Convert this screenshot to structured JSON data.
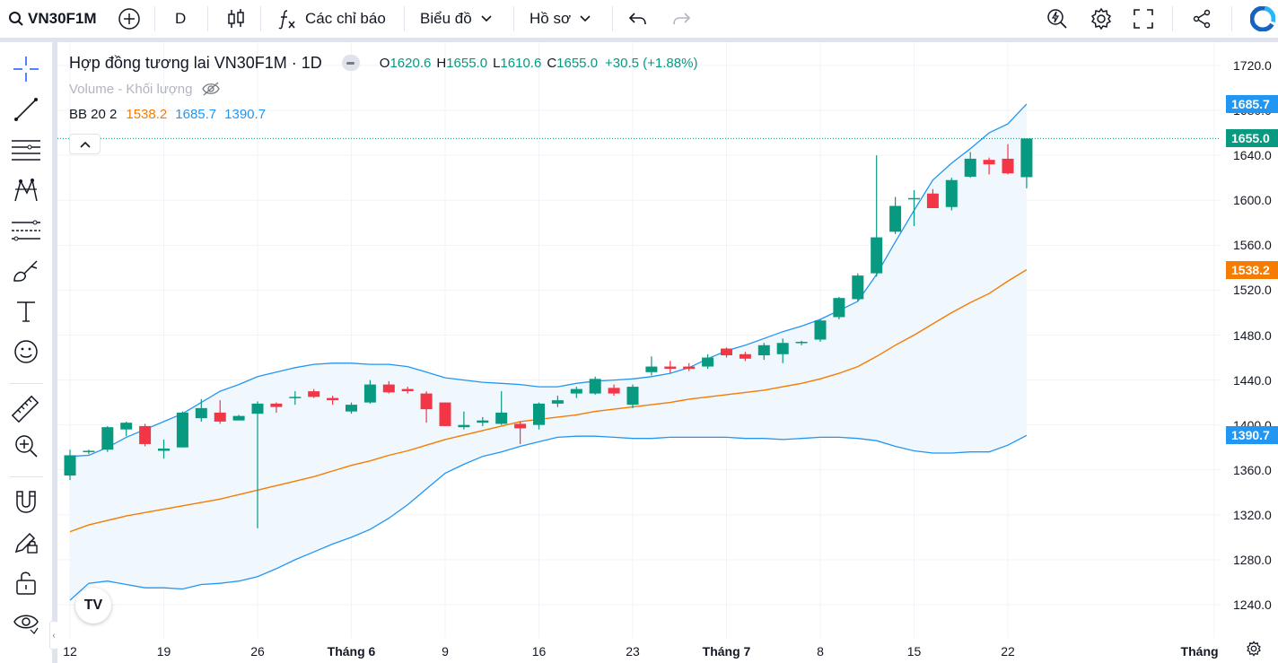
{
  "toolbar": {
    "symbol": "VN30F1M",
    "interval": "D",
    "indicators_label": "Các chỉ báo",
    "chart_label": "Biểu đồ",
    "profile_label": "Hồ sơ"
  },
  "legend": {
    "title": "Hợp đồng tương lai VN30F1M · 1D",
    "o_label": "O",
    "o_value": "1620.6",
    "h_label": "H",
    "h_value": "1655.0",
    "l_label": "L",
    "l_value": "1610.6",
    "c_label": "C",
    "c_value": "1655.0",
    "change": "+30.5 (+1.88%)",
    "volume_label": "Volume - Khối lượng",
    "bb_label": "BB 20 2",
    "bb_middle": "1538.2",
    "bb_upper": "1685.7",
    "bb_lower": "1390.7"
  },
  "logo_text": "TV",
  "colors": {
    "up": "#089981",
    "down": "#f23645",
    "bb_basis": "#f57c00",
    "bb_band": "#2196f3",
    "bb_fill": "#f0f7fd",
    "last_price": "#089981"
  },
  "price_scale": {
    "ticks": [
      "1720.0",
      "1680.0",
      "1640.0",
      "1600.0",
      "1560.0",
      "1520.0",
      "1480.0",
      "1440.0",
      "1400.0",
      "1360.0",
      "1320.0",
      "1280.0",
      "1240.0"
    ],
    "tick_values": [
      1720,
      1680,
      1640,
      1600,
      1560,
      1520,
      1480,
      1440,
      1400,
      1360,
      1320,
      1280,
      1240
    ],
    "badges": [
      {
        "label": "1685.7",
        "value": 1685.7,
        "color": "#2196f3"
      },
      {
        "label": "1655.0",
        "value": 1655.0,
        "color": "#089981"
      },
      {
        "label": "1538.2",
        "value": 1538.2,
        "color": "#f57c00"
      },
      {
        "label": "1390.7",
        "value": 1390.7,
        "color": "#2196f3"
      }
    ]
  },
  "time_scale": {
    "ticks": [
      {
        "label": "12",
        "index": 0
      },
      {
        "label": "19",
        "index": 5
      },
      {
        "label": "26",
        "index": 10
      },
      {
        "label": "Tháng 6",
        "index": 15,
        "bold": true
      },
      {
        "label": "9",
        "index": 20
      },
      {
        "label": "16",
        "index": 25
      },
      {
        "label": "23",
        "index": 30
      },
      {
        "label": "Tháng 7",
        "index": 35,
        "bold": true
      },
      {
        "label": "8",
        "index": 40
      },
      {
        "label": "15",
        "index": 45
      },
      {
        "label": "22",
        "index": 50
      },
      {
        "label": "Tháng Tám",
        "index": 61,
        "bold": true
      }
    ]
  },
  "chart_data": {
    "type": "candlestick",
    "title": "Hợp đồng tương lai VN30F1M · 1D",
    "ylim": [
      1220,
      1750
    ],
    "last_price": 1655.0,
    "candles": [
      {
        "o": 1355,
        "h": 1378,
        "l": 1351,
        "c": 1373
      },
      {
        "o": 1376,
        "h": 1378,
        "l": 1374,
        "c": 1377
      },
      {
        "o": 1378,
        "h": 1399,
        "l": 1376,
        "c": 1398
      },
      {
        "o": 1396,
        "h": 1403,
        "l": 1390,
        "c": 1402
      },
      {
        "o": 1399,
        "h": 1401,
        "l": 1381,
        "c": 1383
      },
      {
        "o": 1377,
        "h": 1387,
        "l": 1370,
        "c": 1379
      },
      {
        "o": 1380,
        "h": 1412,
        "l": 1380,
        "c": 1411
      },
      {
        "o": 1406,
        "h": 1423,
        "l": 1403,
        "c": 1415
      },
      {
        "o": 1411,
        "h": 1422,
        "l": 1401,
        "c": 1403
      },
      {
        "o": 1404,
        "h": 1409,
        "l": 1404,
        "c": 1408
      },
      {
        "o": 1410,
        "h": 1421,
        "l": 1308,
        "c": 1419
      },
      {
        "o": 1419,
        "h": 1420,
        "l": 1411,
        "c": 1416
      },
      {
        "o": 1424,
        "h": 1430,
        "l": 1418,
        "c": 1425
      },
      {
        "o": 1430,
        "h": 1432,
        "l": 1424,
        "c": 1425
      },
      {
        "o": 1424,
        "h": 1426,
        "l": 1418,
        "c": 1422
      },
      {
        "o": 1412,
        "h": 1420,
        "l": 1410,
        "c": 1418
      },
      {
        "o": 1420,
        "h": 1440,
        "l": 1419,
        "c": 1436
      },
      {
        "o": 1436,
        "h": 1439,
        "l": 1428,
        "c": 1429
      },
      {
        "o": 1432,
        "h": 1434,
        "l": 1428,
        "c": 1430
      },
      {
        "o": 1428,
        "h": 1430,
        "l": 1402,
        "c": 1414
      },
      {
        "o": 1420,
        "h": 1420,
        "l": 1399,
        "c": 1399
      },
      {
        "o": 1398,
        "h": 1412,
        "l": 1396,
        "c": 1400
      },
      {
        "o": 1402,
        "h": 1407,
        "l": 1399,
        "c": 1404
      },
      {
        "o": 1401,
        "h": 1430,
        "l": 1400,
        "c": 1411
      },
      {
        "o": 1401,
        "h": 1403,
        "l": 1383,
        "c": 1397
      },
      {
        "o": 1400,
        "h": 1420,
        "l": 1396,
        "c": 1419
      },
      {
        "o": 1419,
        "h": 1426,
        "l": 1416,
        "c": 1422
      },
      {
        "o": 1428,
        "h": 1434,
        "l": 1424,
        "c": 1432
      },
      {
        "o": 1428,
        "h": 1443,
        "l": 1427,
        "c": 1441
      },
      {
        "o": 1433,
        "h": 1436,
        "l": 1426,
        "c": 1428
      },
      {
        "o": 1418,
        "h": 1436,
        "l": 1415,
        "c": 1434
      },
      {
        "o": 1447,
        "h": 1461,
        "l": 1444,
        "c": 1452
      },
      {
        "o": 1452,
        "h": 1457,
        "l": 1446,
        "c": 1450
      },
      {
        "o": 1452,
        "h": 1455,
        "l": 1448,
        "c": 1450
      },
      {
        "o": 1452,
        "h": 1463,
        "l": 1450,
        "c": 1460
      },
      {
        "o": 1468,
        "h": 1469,
        "l": 1460,
        "c": 1462
      },
      {
        "o": 1463,
        "h": 1465,
        "l": 1457,
        "c": 1459
      },
      {
        "o": 1462,
        "h": 1473,
        "l": 1458,
        "c": 1471
      },
      {
        "o": 1463,
        "h": 1477,
        "l": 1455,
        "c": 1473
      },
      {
        "o": 1473,
        "h": 1475,
        "l": 1471,
        "c": 1474
      },
      {
        "o": 1476,
        "h": 1494,
        "l": 1474,
        "c": 1493
      },
      {
        "o": 1496,
        "h": 1514,
        "l": 1494,
        "c": 1513
      },
      {
        "o": 1512,
        "h": 1535,
        "l": 1510,
        "c": 1533
      },
      {
        "o": 1535,
        "h": 1640,
        "l": 1532,
        "c": 1567
      },
      {
        "o": 1572,
        "h": 1603,
        "l": 1570,
        "c": 1595
      },
      {
        "o": 1602,
        "h": 1609,
        "l": 1577,
        "c": 1602
      },
      {
        "o": 1606,
        "h": 1610,
        "l": 1594,
        "c": 1593
      },
      {
        "o": 1594,
        "h": 1620,
        "l": 1591,
        "c": 1618
      },
      {
        "o": 1621,
        "h": 1643,
        "l": 1620,
        "c": 1637
      },
      {
        "o": 1636,
        "h": 1638,
        "l": 1623,
        "c": 1632
      },
      {
        "o": 1637,
        "h": 1650,
        "l": 1623,
        "c": 1624
      },
      {
        "o": 1620.6,
        "h": 1655,
        "l": 1610.6,
        "c": 1655
      }
    ],
    "bb_upper": [
      1372,
      1373,
      1380,
      1389,
      1396,
      1403,
      1410,
      1420,
      1430,
      1436,
      1443,
      1447,
      1451,
      1454,
      1455,
      1455,
      1454,
      1454,
      1452,
      1447,
      1442,
      1440,
      1438,
      1437,
      1436,
      1434,
      1434,
      1437,
      1439,
      1440,
      1441,
      1443,
      1446,
      1451,
      1459,
      1466,
      1471,
      1477,
      1483,
      1488,
      1494,
      1502,
      1510,
      1534,
      1563,
      1591,
      1618,
      1633,
      1646,
      1660,
      1668,
      1685.7
    ],
    "bb_basis": [
      1305,
      1311,
      1315,
      1319,
      1322,
      1325,
      1328,
      1331,
      1334,
      1338,
      1342,
      1346,
      1350,
      1354,
      1359,
      1364,
      1368,
      1373,
      1377,
      1382,
      1387,
      1391,
      1395,
      1399,
      1403,
      1405,
      1407,
      1409,
      1412,
      1414,
      1416,
      1418,
      1420,
      1423,
      1425,
      1427,
      1429,
      1431,
      1434,
      1437,
      1441,
      1446,
      1452,
      1461,
      1471,
      1480,
      1490,
      1500,
      1509,
      1517,
      1528,
      1538.2
    ],
    "bb_lower": [
      1244,
      1259,
      1261,
      1258,
      1255,
      1255,
      1254,
      1258,
      1259,
      1261,
      1265,
      1272,
      1280,
      1287,
      1294,
      1300,
      1307,
      1317,
      1329,
      1343,
      1357,
      1365,
      1372,
      1376,
      1381,
      1385,
      1389,
      1390,
      1390,
      1389,
      1388,
      1388,
      1389,
      1389,
      1389,
      1389,
      1388,
      1388,
      1387,
      1388,
      1389,
      1389,
      1388,
      1386,
      1381,
      1377,
      1375,
      1375,
      1376,
      1376,
      1382,
      1390.7
    ]
  }
}
